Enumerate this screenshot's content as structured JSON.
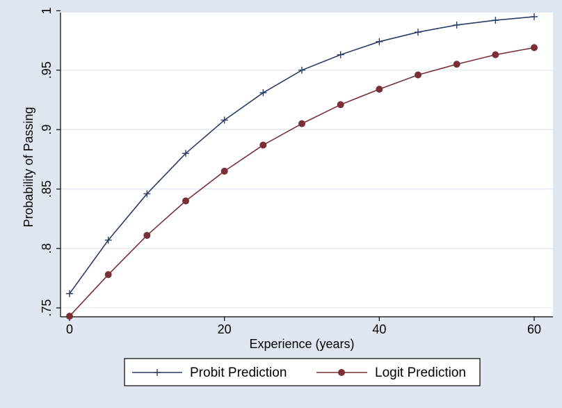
{
  "chart_data": {
    "type": "line",
    "xlabel": "Experience (years)",
    "ylabel": "Probability of Passing",
    "xlim": [
      0,
      60
    ],
    "ylim": [
      0.7425,
      0.9985
    ],
    "x_ticks": [
      0,
      20,
      40,
      60
    ],
    "x_tick_labels": [
      "0",
      "20",
      "40",
      "60"
    ],
    "y_ticks": [
      0.75,
      0.8,
      0.85,
      0.9,
      0.95,
      1
    ],
    "y_tick_labels": [
      ".75",
      ".8",
      ".85",
      ".9",
      ".95",
      "1"
    ],
    "grid": "horizontal",
    "legend_position": "bottom",
    "x": [
      0,
      5,
      10,
      15,
      20,
      25,
      30,
      35,
      40,
      45,
      50,
      55,
      60
    ],
    "series": [
      {
        "name": "Probit Prediction",
        "marker": "plus",
        "color": "#2b3a67",
        "values": [
          0.762,
          0.807,
          0.846,
          0.88,
          0.908,
          0.931,
          0.95,
          0.963,
          0.974,
          0.982,
          0.988,
          0.992,
          0.995
        ]
      },
      {
        "name": "Logit Prediction",
        "marker": "circle",
        "color": "#7a2e38",
        "values": [
          0.743,
          0.778,
          0.811,
          0.84,
          0.865,
          0.887,
          0.905,
          0.921,
          0.934,
          0.946,
          0.955,
          0.963,
          0.969
        ]
      }
    ]
  },
  "colors": {
    "outer_background": "#dfe6ef",
    "plot_background": "#ffffff",
    "grid": "#dfe6ef"
  }
}
